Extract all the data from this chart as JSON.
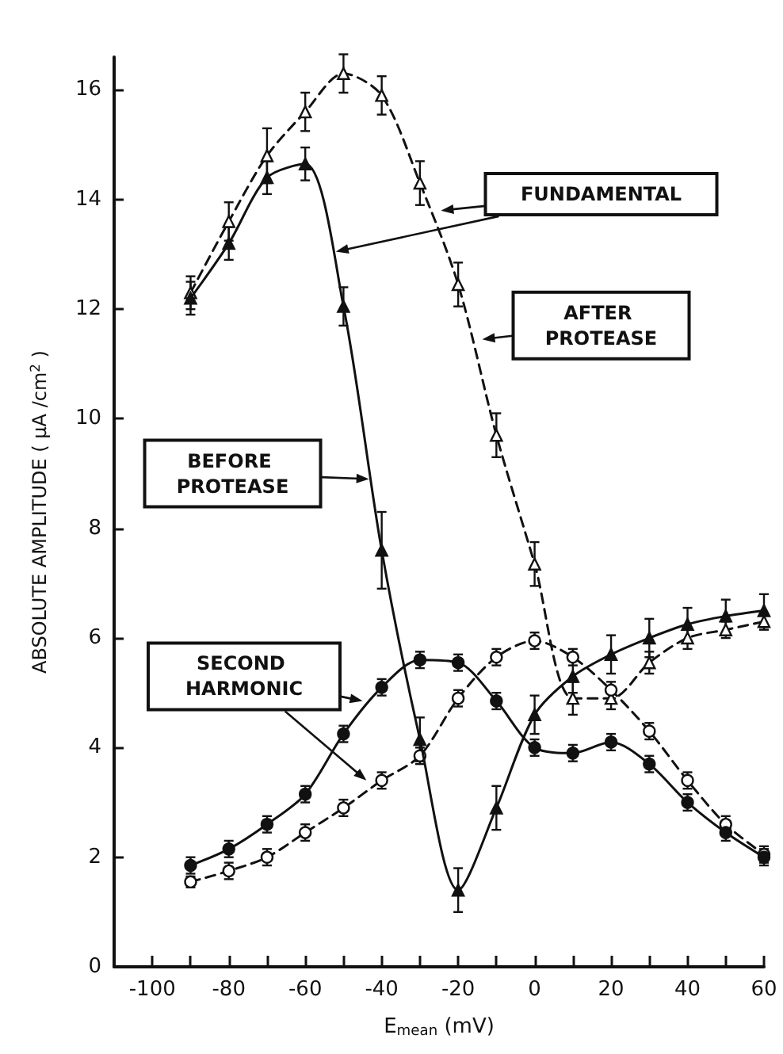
{
  "chart_data": {
    "type": "line",
    "xlabel": "E$_{mean}$ (mV)",
    "ylabel": "ABSOLUTE AMPLITUDE ( μA /cm$^{2}$ )",
    "x": [
      -90,
      -80,
      -70,
      -60,
      -50,
      -40,
      -30,
      -20,
      -10,
      0,
      10,
      20,
      30,
      40,
      50,
      60
    ],
    "series": [
      {
        "color": "#111111",
        "marker": "triangle",
        "line_style": "solid",
        "values": [
          12.2,
          13.2,
          14.4,
          14.65,
          12.05,
          7.6,
          4.15,
          1.4,
          2.9,
          4.6,
          5.3,
          5.7,
          6.0,
          6.25,
          6.4,
          6.5
        ],
        "errors": [
          0.3,
          0.3,
          0.3,
          0.3,
          0.35,
          0.7,
          0.4,
          0.4,
          0.4,
          0.35,
          0.3,
          0.35,
          0.35,
          0.3,
          0.3,
          0.3
        ]
      },
      {
        "color": "#111111",
        "marker": "triangle",
        "line_style": "dashed",
        "values": [
          12.3,
          13.6,
          14.8,
          15.6,
          16.3,
          15.9,
          14.3,
          12.45,
          9.7,
          7.35,
          4.9,
          4.9,
          5.55,
          6.0,
          6.15,
          6.3
        ],
        "errors": [
          0.3,
          0.35,
          0.5,
          0.35,
          0.35,
          0.35,
          0.4,
          0.4,
          0.4,
          0.4,
          0.3,
          0.2,
          0.2,
          0.2,
          0.15,
          0.15
        ]
      },
      {
        "color": "#111111",
        "marker": "circle",
        "line_style": "solid",
        "values": [
          1.85,
          2.15,
          2.6,
          3.15,
          4.25,
          5.1,
          5.6,
          5.55,
          4.85,
          4.0,
          3.9,
          4.1,
          3.7,
          3.0,
          2.45,
          2.0
        ],
        "errors": [
          0.15,
          0.15,
          0.15,
          0.15,
          0.15,
          0.15,
          0.15,
          0.15,
          0.15,
          0.15,
          0.15,
          0.15,
          0.15,
          0.15,
          0.15,
          0.15
        ]
      },
      {
        "color": "#111111",
        "marker": "circle",
        "line_style": "dashed",
        "values": [
          1.55,
          1.75,
          2.0,
          2.45,
          2.9,
          3.4,
          3.85,
          4.9,
          5.65,
          5.95,
          5.65,
          5.05,
          4.3,
          3.4,
          2.6,
          2.05
        ],
        "errors": [
          0.1,
          0.15,
          0.15,
          0.15,
          0.15,
          0.15,
          0.15,
          0.15,
          0.15,
          0.15,
          0.15,
          0.15,
          0.15,
          0.15,
          0.15,
          0.15
        ]
      }
    ],
    "xlim": [
      -110,
      60
    ],
    "xticks": [
      -100,
      {
        "value": -90,
        "label": null
      },
      -80,
      {
        "value": -70,
        "label": null
      },
      -60,
      {
        "value": -50,
        "label": null
      },
      -40,
      {
        "value": -30,
        "label": null
      },
      -20,
      {
        "value": -10,
        "label": null
      },
      0,
      {
        "value": 10,
        "label": null
      },
      20,
      {
        "value": 30,
        "label": null
      },
      40,
      {
        "value": 50,
        "label": null
      },
      60
    ],
    "ylim": [
      0,
      16.6
    ],
    "yticks": [
      0,
      2,
      4,
      6,
      8,
      10,
      12,
      14,
      16
    ],
    "grid": false,
    "annotations": [
      "FUNDAMENTAL",
      "AFTER PROTEASE",
      "BEFORE PROTEASE",
      "SECOND HARMONIC"
    ]
  }
}
